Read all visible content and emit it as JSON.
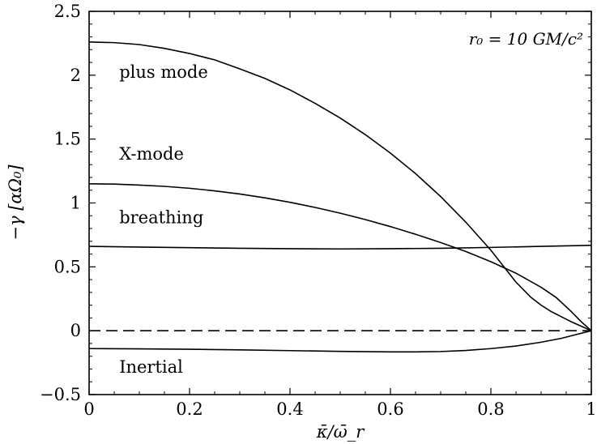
{
  "chart_data": {
    "type": "line",
    "title": "",
    "xlabel": "κ̄/ω̄_r",
    "ylabel": "−γ [αΩ₀]",
    "xlim": [
      0,
      1
    ],
    "ylim": [
      -0.5,
      2.5
    ],
    "x_ticks": [
      0,
      0.2,
      0.4,
      0.6,
      0.8,
      1
    ],
    "x_tick_labels": [
      "0",
      "0.2",
      "0.4",
      "0.6",
      "0.8",
      "1"
    ],
    "y_ticks": [
      -0.5,
      0,
      0.5,
      1,
      1.5,
      2,
      2.5
    ],
    "y_tick_labels": [
      "−0.5",
      "0",
      "0.5",
      "1",
      "1.5",
      "2",
      "2.5"
    ],
    "grid": false,
    "annotation": "r₀ = 10 GM/c²",
    "series": [
      {
        "name": "plus mode",
        "x": [
          0,
          0.05,
          0.1,
          0.15,
          0.2,
          0.25,
          0.3,
          0.35,
          0.4,
          0.45,
          0.5,
          0.55,
          0.6,
          0.65,
          0.7,
          0.75,
          0.8,
          0.83,
          0.85,
          0.88,
          0.9,
          0.92,
          0.94,
          0.96,
          0.98,
          1.0
        ],
        "y": [
          2.26,
          2.255,
          2.24,
          2.21,
          2.17,
          2.12,
          2.05,
          1.975,
          1.885,
          1.78,
          1.665,
          1.535,
          1.39,
          1.23,
          1.05,
          0.85,
          0.63,
          0.48,
          0.38,
          0.26,
          0.2,
          0.15,
          0.11,
          0.07,
          0.035,
          0.0
        ]
      },
      {
        "name": "X-mode",
        "x": [
          0,
          0.05,
          0.1,
          0.15,
          0.2,
          0.25,
          0.3,
          0.35,
          0.4,
          0.45,
          0.5,
          0.55,
          0.6,
          0.65,
          0.7,
          0.75,
          0.8,
          0.85,
          0.9,
          0.93,
          0.96,
          0.98,
          1.0
        ],
        "y": [
          1.15,
          1.148,
          1.14,
          1.13,
          1.115,
          1.095,
          1.07,
          1.04,
          1.005,
          0.965,
          0.92,
          0.87,
          0.815,
          0.755,
          0.69,
          0.62,
          0.54,
          0.45,
          0.34,
          0.26,
          0.15,
          0.07,
          0.0
        ]
      },
      {
        "name": "breathing",
        "x": [
          0,
          0.1,
          0.2,
          0.3,
          0.4,
          0.5,
          0.6,
          0.7,
          0.8,
          0.9,
          1.0
        ],
        "y": [
          0.66,
          0.655,
          0.65,
          0.645,
          0.642,
          0.64,
          0.642,
          0.645,
          0.652,
          0.66,
          0.668
        ]
      },
      {
        "name": "Inertial",
        "x": [
          0,
          0.1,
          0.2,
          0.3,
          0.4,
          0.5,
          0.6,
          0.65,
          0.7,
          0.75,
          0.8,
          0.85,
          0.9,
          0.94,
          0.97,
          1.0
        ],
        "y": [
          -0.14,
          -0.142,
          -0.145,
          -0.15,
          -0.156,
          -0.162,
          -0.166,
          -0.166,
          -0.163,
          -0.155,
          -0.14,
          -0.12,
          -0.09,
          -0.06,
          -0.03,
          0.0
        ]
      },
      {
        "name": "",
        "style": "dashed",
        "x": [
          0,
          1
        ],
        "y": [
          0,
          0
        ]
      }
    ]
  }
}
